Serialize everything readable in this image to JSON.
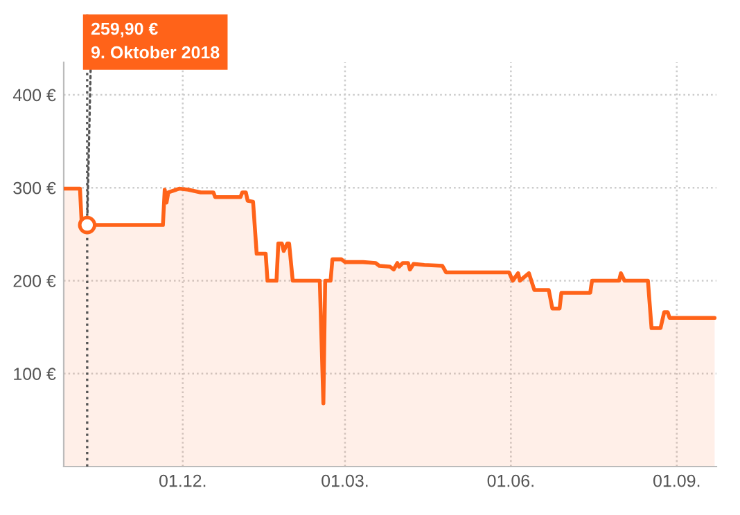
{
  "chart_data": {
    "type": "area",
    "ylim": [
      0,
      435
    ],
    "xlim": [
      "2018-09-26",
      "2019-09-23"
    ],
    "yticks": [
      {
        "value": 100,
        "label": "100 €"
      },
      {
        "value": 200,
        "label": "200 €"
      },
      {
        "value": 300,
        "label": "300 €"
      },
      {
        "value": 400,
        "label": "400 €"
      }
    ],
    "xticks": [
      {
        "value": "2018-12-01",
        "label": "01.12."
      },
      {
        "value": "2019-03-01",
        "label": "01.03."
      },
      {
        "value": "2019-06-01",
        "label": "01.06."
      },
      {
        "value": "2019-09-01",
        "label": "01.09."
      }
    ],
    "grid": true,
    "legend": false,
    "line_style": "solid",
    "series": [
      {
        "color": "#ff6319",
        "x": [
          "2018-09-26",
          "2018-10-05",
          "2018-10-06",
          "2018-11-20",
          "2018-11-21",
          "2018-11-22",
          "2018-11-23",
          "2018-11-29",
          "2018-12-04",
          "2018-12-11",
          "2018-12-18",
          "2018-12-19",
          "2019-01-02",
          "2019-01-03",
          "2019-01-05",
          "2019-01-06",
          "2019-01-09",
          "2019-01-11",
          "2019-01-16",
          "2019-01-17",
          "2019-01-22",
          "2019-01-23",
          "2019-01-25",
          "2019-01-26",
          "2019-01-28",
          "2019-01-29",
          "2019-01-31",
          "2019-02-15",
          "2019-02-17",
          "2019-02-18",
          "2019-02-21",
          "2019-02-22",
          "2019-02-27",
          "2019-03-01",
          "2019-03-11",
          "2019-03-18",
          "2019-03-20",
          "2019-03-26",
          "2019-03-28",
          "2019-03-30",
          "2019-03-31",
          "2019-04-02",
          "2019-04-05",
          "2019-04-06",
          "2019-04-08",
          "2019-04-14",
          "2019-04-24",
          "2019-04-26",
          "2019-05-31",
          "2019-06-02",
          "2019-06-05",
          "2019-06-06",
          "2019-06-11",
          "2019-06-14",
          "2019-06-22",
          "2019-06-24",
          "2019-06-28",
          "2019-06-29",
          "2019-07-15",
          "2019-07-16",
          "2019-07-31",
          "2019-08-01",
          "2019-08-03",
          "2019-08-16",
          "2019-08-18",
          "2019-08-23",
          "2019-08-25",
          "2019-08-27",
          "2019-08-28",
          "2019-09-22"
        ],
        "values": [
          299,
          299,
          259.9,
          259.9,
          298,
          284,
          295,
          299,
          298,
          295,
          295,
          290,
          290,
          295,
          295,
          286,
          285,
          229,
          229,
          200,
          200,
          240,
          240,
          232,
          240,
          240,
          200,
          200,
          68,
          200,
          200,
          223,
          223,
          220,
          220,
          219,
          216,
          215,
          212,
          219,
          215,
          219,
          219,
          212,
          218,
          217,
          216,
          209,
          209,
          200,
          208,
          200,
          208,
          190,
          190,
          170,
          170,
          187,
          187,
          200,
          200,
          208,
          200,
          200,
          149,
          149,
          166,
          166,
          160,
          160
        ]
      },
      {
        "type": "scatter",
        "color": "#ff6319",
        "marker": "circle",
        "x": [
          "2018-10-09"
        ],
        "values": [
          259.9
        ]
      }
    ],
    "ref_lines": [
      {
        "axis": "x",
        "value": "2018-10-09",
        "color": "#555555",
        "line_style": "dotted"
      }
    ],
    "annotations": [
      {
        "text": "259,90 €\n9. Oktober 2018",
        "x": "2018-10-09",
        "y": 259.9
      }
    ]
  }
}
